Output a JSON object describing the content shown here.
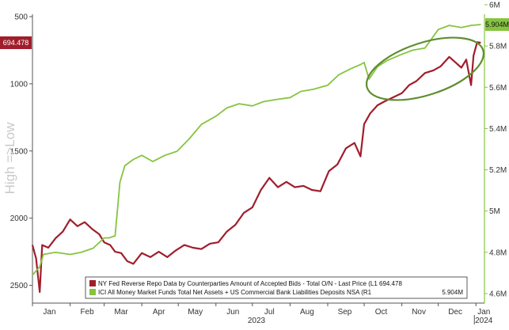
{
  "chart_data": {
    "type": "line",
    "ylabel_left": "High =>Low",
    "x_ticks": [
      "Jan",
      "Feb",
      "Mar",
      "Apr",
      "May",
      "Jun",
      "Jul",
      "Aug",
      "Sep",
      "Oct",
      "Nov",
      "Dec",
      "Jan"
    ],
    "year_labels": [
      "2023",
      "2024"
    ],
    "left_axis": {
      "ticks": [
        "500",
        "1000",
        "1500",
        "2000",
        "2500"
      ],
      "inverted": true,
      "range": [
        500,
        2650
      ]
    },
    "right_axis": {
      "ticks": [
        "4.6M",
        "4.8M",
        "5M",
        "5.2M",
        "5.4M",
        "5.6M",
        "5.8M",
        "6M"
      ],
      "range": [
        4.6,
        6.0
      ]
    },
    "last_values": {
      "repo": "694.478",
      "mmf": "5.904M"
    },
    "series": [
      {
        "name": "NY Fed Reverse Repo Data by Counterparties Amount of Accepted Bids - Total O/N - Last Price (L1 694.478",
        "axis": "left",
        "color": "#a01e2c",
        "points": [
          [
            "2023-01-01",
            2200
          ],
          [
            "2023-01-04",
            2300
          ],
          [
            "2023-01-07",
            2550
          ],
          [
            "2023-01-09",
            2200
          ],
          [
            "2023-01-14",
            2220
          ],
          [
            "2023-01-20",
            2150
          ],
          [
            "2023-01-26",
            2100
          ],
          [
            "2023-02-01",
            2010
          ],
          [
            "2023-02-07",
            2060
          ],
          [
            "2023-02-13",
            2030
          ],
          [
            "2023-02-19",
            2080
          ],
          [
            "2023-02-25",
            2120
          ],
          [
            "2023-03-01",
            2180
          ],
          [
            "2023-03-06",
            2200
          ],
          [
            "2023-03-10",
            2250
          ],
          [
            "2023-03-15",
            2260
          ],
          [
            "2023-03-20",
            2320
          ],
          [
            "2023-03-25",
            2340
          ],
          [
            "2023-04-01",
            2260
          ],
          [
            "2023-04-08",
            2290
          ],
          [
            "2023-04-15",
            2250
          ],
          [
            "2023-04-22",
            2290
          ],
          [
            "2023-04-29",
            2240
          ],
          [
            "2023-05-06",
            2200
          ],
          [
            "2023-05-13",
            2220
          ],
          [
            "2023-05-20",
            2230
          ],
          [
            "2023-05-27",
            2190
          ],
          [
            "2023-06-03",
            2180
          ],
          [
            "2023-06-10",
            2100
          ],
          [
            "2023-06-17",
            2050
          ],
          [
            "2023-06-24",
            1960
          ],
          [
            "2023-07-01",
            1920
          ],
          [
            "2023-07-08",
            1790
          ],
          [
            "2023-07-15",
            1700
          ],
          [
            "2023-07-22",
            1770
          ],
          [
            "2023-07-29",
            1730
          ],
          [
            "2023-08-05",
            1770
          ],
          [
            "2023-08-12",
            1760
          ],
          [
            "2023-08-19",
            1790
          ],
          [
            "2023-08-26",
            1800
          ],
          [
            "2023-09-02",
            1650
          ],
          [
            "2023-09-09",
            1600
          ],
          [
            "2023-09-16",
            1480
          ],
          [
            "2023-09-23",
            1440
          ],
          [
            "2023-09-28",
            1540
          ],
          [
            "2023-10-01",
            1300
          ],
          [
            "2023-10-06",
            1220
          ],
          [
            "2023-10-12",
            1160
          ],
          [
            "2023-10-18",
            1130
          ],
          [
            "2023-10-25",
            1100
          ],
          [
            "2023-11-01",
            1070
          ],
          [
            "2023-11-07",
            1010
          ],
          [
            "2023-11-13",
            980
          ],
          [
            "2023-11-20",
            920
          ],
          [
            "2023-11-27",
            900
          ],
          [
            "2023-12-03",
            870
          ],
          [
            "2023-12-10",
            800
          ],
          [
            "2023-12-15",
            840
          ],
          [
            "2023-12-20",
            880
          ],
          [
            "2023-12-24",
            820
          ],
          [
            "2023-12-28",
            1010
          ],
          [
            "2023-12-30",
            790
          ],
          [
            "2024-01-02",
            690
          ],
          [
            "2024-01-05",
            694.478
          ]
        ]
      },
      {
        "name": "ICI All Money Market Funds Total Net Assets + US Commercial Bank Liabilities Deposits NSA (R1",
        "axis": "right",
        "color": "#86c440",
        "points": [
          [
            "2023-01-01",
            4.69
          ],
          [
            "2023-01-07",
            4.73
          ],
          [
            "2023-01-10",
            4.79
          ],
          [
            "2023-01-20",
            4.8
          ],
          [
            "2023-02-01",
            4.79
          ],
          [
            "2023-02-10",
            4.8
          ],
          [
            "2023-02-20",
            4.82
          ],
          [
            "2023-03-01",
            4.87
          ],
          [
            "2023-03-05",
            4.87
          ],
          [
            "2023-03-10",
            4.88
          ],
          [
            "2023-03-14",
            5.14
          ],
          [
            "2023-03-18",
            5.22
          ],
          [
            "2023-03-25",
            5.25
          ],
          [
            "2023-04-01",
            5.27
          ],
          [
            "2023-04-10",
            5.24
          ],
          [
            "2023-04-20",
            5.27
          ],
          [
            "2023-04-30",
            5.29
          ],
          [
            "2023-05-10",
            5.35
          ],
          [
            "2023-05-20",
            5.42
          ],
          [
            "2023-06-01",
            5.46
          ],
          [
            "2023-06-10",
            5.5
          ],
          [
            "2023-06-20",
            5.52
          ],
          [
            "2023-07-01",
            5.51
          ],
          [
            "2023-07-10",
            5.53
          ],
          [
            "2023-07-20",
            5.54
          ],
          [
            "2023-08-01",
            5.55
          ],
          [
            "2023-08-10",
            5.58
          ],
          [
            "2023-08-20",
            5.59
          ],
          [
            "2023-09-01",
            5.61
          ],
          [
            "2023-09-10",
            5.66
          ],
          [
            "2023-09-20",
            5.69
          ],
          [
            "2023-09-28",
            5.71
          ],
          [
            "2023-10-01",
            5.72
          ],
          [
            "2023-10-05",
            5.64
          ],
          [
            "2023-10-12",
            5.7
          ],
          [
            "2023-10-20",
            5.73
          ],
          [
            "2023-11-01",
            5.76
          ],
          [
            "2023-11-10",
            5.78
          ],
          [
            "2023-11-20",
            5.79
          ],
          [
            "2023-12-01",
            5.88
          ],
          [
            "2023-12-10",
            5.9
          ],
          [
            "2023-12-20",
            5.89
          ],
          [
            "2023-12-28",
            5.9
          ],
          [
            "2024-01-05",
            5.904
          ]
        ]
      }
    ],
    "annotations": [
      "ellipse highlighting Oct–Dec 2023"
    ],
    "grid": false,
    "legend_position": "bottom-right"
  }
}
